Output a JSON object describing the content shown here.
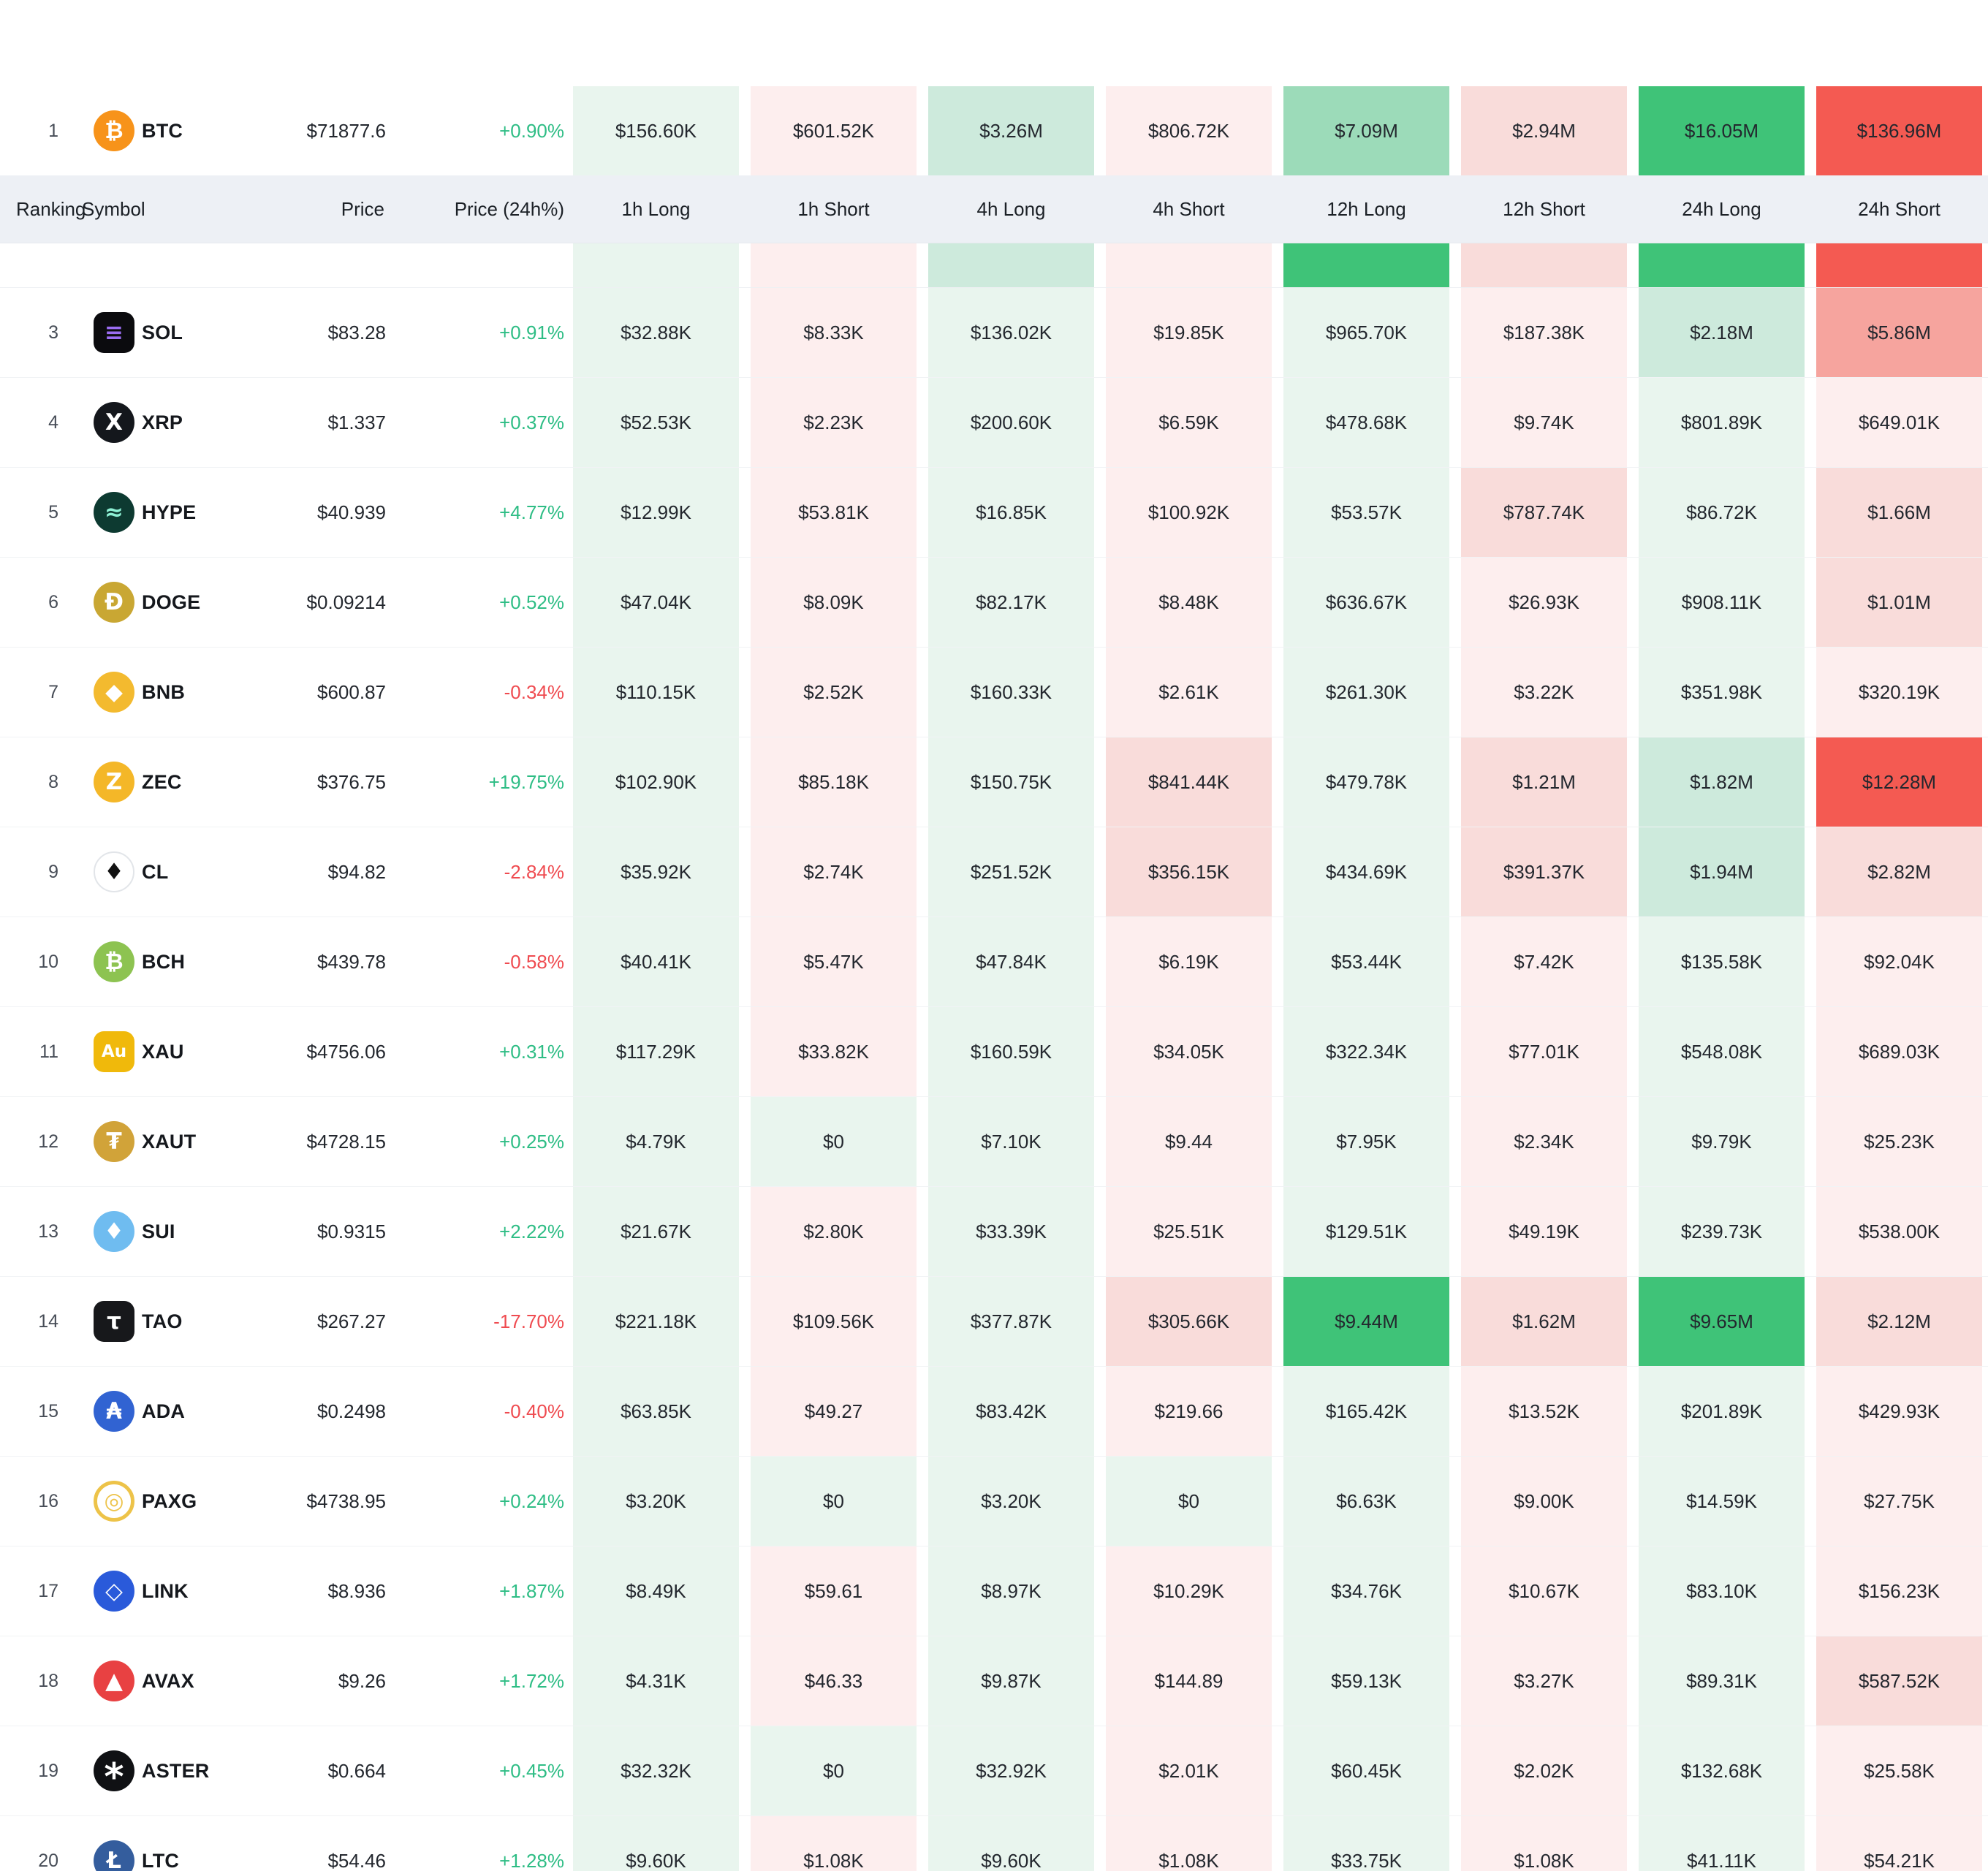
{
  "colors": {
    "up_text": "#2ebd85",
    "down_text": "#ef4b50",
    "header_bg": "#edf0f5",
    "tones": {
      "g1": "#e9f5ee",
      "g2": "#cdeadc",
      "g3": "#9cdbb9",
      "g4": "#3fc378",
      "r1": "#fdeeee",
      "r2": "#f9dcda",
      "r3": "#f6a49e",
      "r4": "#f45a52"
    }
  },
  "columns": [
    {
      "key": "rank",
      "label": "Ranking"
    },
    {
      "key": "symbol",
      "label": "Symbol"
    },
    {
      "key": "price",
      "label": "Price"
    },
    {
      "key": "change",
      "label": "Price (24h%)"
    },
    {
      "key": "h1l",
      "label": "1h Long"
    },
    {
      "key": "h1s",
      "label": "1h Short"
    },
    {
      "key": "h4l",
      "label": "4h Long"
    },
    {
      "key": "h4s",
      "label": "4h Short"
    },
    {
      "key": "h12l",
      "label": "12h Long"
    },
    {
      "key": "h12s",
      "label": "12h Short"
    },
    {
      "key": "h24l",
      "label": "24h Long"
    },
    {
      "key": "h24s",
      "label": "24h Short"
    }
  ],
  "partial_row": {
    "tones": [
      "g1",
      "r1",
      "g2",
      "r1",
      "g4",
      "r2",
      "g4",
      "r4"
    ]
  },
  "rows": [
    {
      "rank": "1",
      "symbol": "BTC",
      "icon": {
        "glyph": "₿",
        "bg": "#f7931a",
        "fg": "#ffffff"
      },
      "price": "$71877.6",
      "change": "+0.90%",
      "change_dir": "up",
      "cells": [
        {
          "v": "$156.60K",
          "t": "g1"
        },
        {
          "v": "$601.52K",
          "t": "r1"
        },
        {
          "v": "$3.26M",
          "t": "g2"
        },
        {
          "v": "$806.72K",
          "t": "r1"
        },
        {
          "v": "$7.09M",
          "t": "g3"
        },
        {
          "v": "$2.94M",
          "t": "r2"
        },
        {
          "v": "$16.05M",
          "t": "g4"
        },
        {
          "v": "$136.96M",
          "t": "r4"
        }
      ]
    },
    {
      "rank": "3",
      "symbol": "SOL",
      "icon": {
        "glyph": "≡",
        "bg": "#0b0b0e",
        "fg": "#9b6df2",
        "shape": "square"
      },
      "price": "$83.28",
      "change": "+0.91%",
      "change_dir": "up",
      "cells": [
        {
          "v": "$32.88K",
          "t": "g1"
        },
        {
          "v": "$8.33K",
          "t": "r1"
        },
        {
          "v": "$136.02K",
          "t": "g1"
        },
        {
          "v": "$19.85K",
          "t": "r1"
        },
        {
          "v": "$965.70K",
          "t": "g1"
        },
        {
          "v": "$187.38K",
          "t": "r1"
        },
        {
          "v": "$2.18M",
          "t": "g2"
        },
        {
          "v": "$5.86M",
          "t": "r3"
        }
      ]
    },
    {
      "rank": "4",
      "symbol": "XRP",
      "icon": {
        "glyph": "X",
        "bg": "#14171c",
        "fg": "#ffffff"
      },
      "price": "$1.337",
      "change": "+0.37%",
      "change_dir": "up",
      "cells": [
        {
          "v": "$52.53K",
          "t": "g1"
        },
        {
          "v": "$2.23K",
          "t": "r1"
        },
        {
          "v": "$200.60K",
          "t": "g1"
        },
        {
          "v": "$6.59K",
          "t": "r1"
        },
        {
          "v": "$478.68K",
          "t": "g1"
        },
        {
          "v": "$9.74K",
          "t": "r1"
        },
        {
          "v": "$801.89K",
          "t": "g1"
        },
        {
          "v": "$649.01K",
          "t": "r1"
        }
      ]
    },
    {
      "rank": "5",
      "symbol": "HYPE",
      "icon": {
        "glyph": "≈",
        "bg": "#0d3a31",
        "fg": "#8ef0d4"
      },
      "price": "$40.939",
      "change": "+4.77%",
      "change_dir": "up",
      "cells": [
        {
          "v": "$12.99K",
          "t": "g1"
        },
        {
          "v": "$53.81K",
          "t": "r1"
        },
        {
          "v": "$16.85K",
          "t": "g1"
        },
        {
          "v": "$100.92K",
          "t": "r1"
        },
        {
          "v": "$53.57K",
          "t": "g1"
        },
        {
          "v": "$787.74K",
          "t": "r2"
        },
        {
          "v": "$86.72K",
          "t": "g1"
        },
        {
          "v": "$1.66M",
          "t": "r2"
        }
      ]
    },
    {
      "rank": "6",
      "symbol": "DOGE",
      "icon": {
        "glyph": "Ð",
        "bg": "#c9a733",
        "fg": "#ffffff"
      },
      "price": "$0.09214",
      "change": "+0.52%",
      "change_dir": "up",
      "cells": [
        {
          "v": "$47.04K",
          "t": "g1"
        },
        {
          "v": "$8.09K",
          "t": "r1"
        },
        {
          "v": "$82.17K",
          "t": "g1"
        },
        {
          "v": "$8.48K",
          "t": "r1"
        },
        {
          "v": "$636.67K",
          "t": "g1"
        },
        {
          "v": "$26.93K",
          "t": "r1"
        },
        {
          "v": "$908.11K",
          "t": "g1"
        },
        {
          "v": "$1.01M",
          "t": "r2"
        }
      ]
    },
    {
      "rank": "7",
      "symbol": "BNB",
      "icon": {
        "glyph": "◆",
        "bg": "#f3ba2f",
        "fg": "#ffffff"
      },
      "price": "$600.87",
      "change": "-0.34%",
      "change_dir": "down",
      "cells": [
        {
          "v": "$110.15K",
          "t": "g1"
        },
        {
          "v": "$2.52K",
          "t": "r1"
        },
        {
          "v": "$160.33K",
          "t": "g1"
        },
        {
          "v": "$2.61K",
          "t": "r1"
        },
        {
          "v": "$261.30K",
          "t": "g1"
        },
        {
          "v": "$3.22K",
          "t": "r1"
        },
        {
          "v": "$351.98K",
          "t": "g1"
        },
        {
          "v": "$320.19K",
          "t": "r1"
        }
      ]
    },
    {
      "rank": "8",
      "symbol": "ZEC",
      "icon": {
        "glyph": "Z",
        "bg": "#f4b728",
        "fg": "#ffffff"
      },
      "price": "$376.75",
      "change": "+19.75%",
      "change_dir": "up",
      "cells": [
        {
          "v": "$102.90K",
          "t": "g1"
        },
        {
          "v": "$85.18K",
          "t": "r1"
        },
        {
          "v": "$150.75K",
          "t": "g1"
        },
        {
          "v": "$841.44K",
          "t": "r2"
        },
        {
          "v": "$479.78K",
          "t": "g1"
        },
        {
          "v": "$1.21M",
          "t": "r2"
        },
        {
          "v": "$1.82M",
          "t": "g2"
        },
        {
          "v": "$12.28M",
          "t": "r4"
        }
      ]
    },
    {
      "rank": "9",
      "symbol": "CL",
      "icon": {
        "glyph": "♦",
        "bg": "#ffffff",
        "fg": "#111111",
        "border": "#e2e5e9",
        "bw": 2
      },
      "price": "$94.82",
      "change": "-2.84%",
      "change_dir": "down",
      "cells": [
        {
          "v": "$35.92K",
          "t": "g1"
        },
        {
          "v": "$2.74K",
          "t": "r1"
        },
        {
          "v": "$251.52K",
          "t": "g1"
        },
        {
          "v": "$356.15K",
          "t": "r2"
        },
        {
          "v": "$434.69K",
          "t": "g1"
        },
        {
          "v": "$391.37K",
          "t": "r2"
        },
        {
          "v": "$1.94M",
          "t": "g2"
        },
        {
          "v": "$2.82M",
          "t": "r2"
        }
      ]
    },
    {
      "rank": "10",
      "symbol": "BCH",
      "icon": {
        "glyph": "₿",
        "bg": "#8dc351",
        "fg": "#ffffff"
      },
      "price": "$439.78",
      "change": "-0.58%",
      "change_dir": "down",
      "cells": [
        {
          "v": "$40.41K",
          "t": "g1"
        },
        {
          "v": "$5.47K",
          "t": "r1"
        },
        {
          "v": "$47.84K",
          "t": "g1"
        },
        {
          "v": "$6.19K",
          "t": "r1"
        },
        {
          "v": "$53.44K",
          "t": "g1"
        },
        {
          "v": "$7.42K",
          "t": "r1"
        },
        {
          "v": "$135.58K",
          "t": "g1"
        },
        {
          "v": "$92.04K",
          "t": "r1"
        }
      ]
    },
    {
      "rank": "11",
      "symbol": "XAU",
      "icon": {
        "glyph": "Au",
        "bg": "#f0b90b",
        "fg": "#ffffff",
        "shape": "square"
      },
      "price": "$4756.06",
      "change": "+0.31%",
      "change_dir": "up",
      "cells": [
        {
          "v": "$117.29K",
          "t": "g1"
        },
        {
          "v": "$33.82K",
          "t": "r1"
        },
        {
          "v": "$160.59K",
          "t": "g1"
        },
        {
          "v": "$34.05K",
          "t": "r1"
        },
        {
          "v": "$322.34K",
          "t": "g1"
        },
        {
          "v": "$77.01K",
          "t": "r1"
        },
        {
          "v": "$548.08K",
          "t": "g1"
        },
        {
          "v": "$689.03K",
          "t": "r1"
        }
      ]
    },
    {
      "rank": "12",
      "symbol": "XAUT",
      "icon": {
        "glyph": "₮",
        "bg": "#d1a339",
        "fg": "#ffffff"
      },
      "price": "$4728.15",
      "change": "+0.25%",
      "change_dir": "up",
      "cells": [
        {
          "v": "$4.79K",
          "t": "g1"
        },
        {
          "v": "$0",
          "t": "g1"
        },
        {
          "v": "$7.10K",
          "t": "g1"
        },
        {
          "v": "$9.44",
          "t": "r1"
        },
        {
          "v": "$7.95K",
          "t": "g1"
        },
        {
          "v": "$2.34K",
          "t": "r1"
        },
        {
          "v": "$9.79K",
          "t": "g1"
        },
        {
          "v": "$25.23K",
          "t": "r1"
        }
      ]
    },
    {
      "rank": "13",
      "symbol": "SUI",
      "icon": {
        "glyph": "♦",
        "bg": "#6fbcf0",
        "fg": "#ffffff"
      },
      "price": "$0.9315",
      "change": "+2.22%",
      "change_dir": "up",
      "cells": [
        {
          "v": "$21.67K",
          "t": "g1"
        },
        {
          "v": "$2.80K",
          "t": "r1"
        },
        {
          "v": "$33.39K",
          "t": "g1"
        },
        {
          "v": "$25.51K",
          "t": "r1"
        },
        {
          "v": "$129.51K",
          "t": "g1"
        },
        {
          "v": "$49.19K",
          "t": "r1"
        },
        {
          "v": "$239.73K",
          "t": "g1"
        },
        {
          "v": "$538.00K",
          "t": "r1"
        }
      ]
    },
    {
      "rank": "14",
      "symbol": "TAO",
      "icon": {
        "glyph": "τ",
        "bg": "#17181b",
        "fg": "#ffffff",
        "shape": "square"
      },
      "price": "$267.27",
      "change": "-17.70%",
      "change_dir": "down",
      "cells": [
        {
          "v": "$221.18K",
          "t": "g1"
        },
        {
          "v": "$109.56K",
          "t": "r1"
        },
        {
          "v": "$377.87K",
          "t": "g1"
        },
        {
          "v": "$305.66K",
          "t": "r2"
        },
        {
          "v": "$9.44M",
          "t": "g4"
        },
        {
          "v": "$1.62M",
          "t": "r2"
        },
        {
          "v": "$9.65M",
          "t": "g4"
        },
        {
          "v": "$2.12M",
          "t": "r2"
        }
      ]
    },
    {
      "rank": "15",
      "symbol": "ADA",
      "icon": {
        "glyph": "₳",
        "bg": "#3163d2",
        "fg": "#ffffff"
      },
      "price": "$0.2498",
      "change": "-0.40%",
      "change_dir": "down",
      "cells": [
        {
          "v": "$63.85K",
          "t": "g1"
        },
        {
          "v": "$49.27",
          "t": "r1"
        },
        {
          "v": "$83.42K",
          "t": "g1"
        },
        {
          "v": "$219.66",
          "t": "r1"
        },
        {
          "v": "$165.42K",
          "t": "g1"
        },
        {
          "v": "$13.52K",
          "t": "r1"
        },
        {
          "v": "$201.89K",
          "t": "g1"
        },
        {
          "v": "$429.93K",
          "t": "r1"
        }
      ]
    },
    {
      "rank": "16",
      "symbol": "PAXG",
      "icon": {
        "glyph": "◎",
        "bg": "#ffffff",
        "fg": "#edc349",
        "border": "#edc349",
        "bw": 5
      },
      "price": "$4738.95",
      "change": "+0.24%",
      "change_dir": "up",
      "cells": [
        {
          "v": "$3.20K",
          "t": "g1"
        },
        {
          "v": "$0",
          "t": "g1"
        },
        {
          "v": "$3.20K",
          "t": "g1"
        },
        {
          "v": "$0",
          "t": "g1"
        },
        {
          "v": "$6.63K",
          "t": "g1"
        },
        {
          "v": "$9.00K",
          "t": "r1"
        },
        {
          "v": "$14.59K",
          "t": "g1"
        },
        {
          "v": "$27.75K",
          "t": "r1"
        }
      ]
    },
    {
      "rank": "17",
      "symbol": "LINK",
      "icon": {
        "glyph": "◇",
        "bg": "#2a5ada",
        "fg": "#ffffff"
      },
      "price": "$8.936",
      "change": "+1.87%",
      "change_dir": "up",
      "cells": [
        {
          "v": "$8.49K",
          "t": "g1"
        },
        {
          "v": "$59.61",
          "t": "r1"
        },
        {
          "v": "$8.97K",
          "t": "g1"
        },
        {
          "v": "$10.29K",
          "t": "r1"
        },
        {
          "v": "$34.76K",
          "t": "g1"
        },
        {
          "v": "$10.67K",
          "t": "r1"
        },
        {
          "v": "$83.10K",
          "t": "g1"
        },
        {
          "v": "$156.23K",
          "t": "r1"
        }
      ]
    },
    {
      "rank": "18",
      "symbol": "AVAX",
      "icon": {
        "glyph": "▲",
        "bg": "#e84142",
        "fg": "#ffffff"
      },
      "price": "$9.26",
      "change": "+1.72%",
      "change_dir": "up",
      "cells": [
        {
          "v": "$4.31K",
          "t": "g1"
        },
        {
          "v": "$46.33",
          "t": "r1"
        },
        {
          "v": "$9.87K",
          "t": "g1"
        },
        {
          "v": "$144.89",
          "t": "r1"
        },
        {
          "v": "$59.13K",
          "t": "g1"
        },
        {
          "v": "$3.27K",
          "t": "r1"
        },
        {
          "v": "$89.31K",
          "t": "g1"
        },
        {
          "v": "$587.52K",
          "t": "r2"
        }
      ]
    },
    {
      "rank": "19",
      "symbol": "ASTER",
      "icon": {
        "glyph": "*",
        "bg": "#101114",
        "fg": "#ffffff"
      },
      "price": "$0.664",
      "change": "+0.45%",
      "change_dir": "up",
      "cells": [
        {
          "v": "$32.32K",
          "t": "g1"
        },
        {
          "v": "$0",
          "t": "g1"
        },
        {
          "v": "$32.92K",
          "t": "g1"
        },
        {
          "v": "$2.01K",
          "t": "r1"
        },
        {
          "v": "$60.45K",
          "t": "g1"
        },
        {
          "v": "$2.02K",
          "t": "r1"
        },
        {
          "v": "$132.68K",
          "t": "g1"
        },
        {
          "v": "$25.58K",
          "t": "r1"
        }
      ]
    },
    {
      "rank": "20",
      "symbol": "LTC",
      "icon": {
        "glyph": "Ł",
        "bg": "#345d9d",
        "fg": "#ffffff"
      },
      "price": "$54.46",
      "change": "+1.28%",
      "change_dir": "up",
      "cells": [
        {
          "v": "$9.60K",
          "t": "g1"
        },
        {
          "v": "$1.08K",
          "t": "r1"
        },
        {
          "v": "$9.60K",
          "t": "g1"
        },
        {
          "v": "$1.08K",
          "t": "r1"
        },
        {
          "v": "$33.75K",
          "t": "g1"
        },
        {
          "v": "$1.08K",
          "t": "r1"
        },
        {
          "v": "$41.11K",
          "t": "g1"
        },
        {
          "v": "$54.21K",
          "t": "r1"
        }
      ]
    }
  ]
}
